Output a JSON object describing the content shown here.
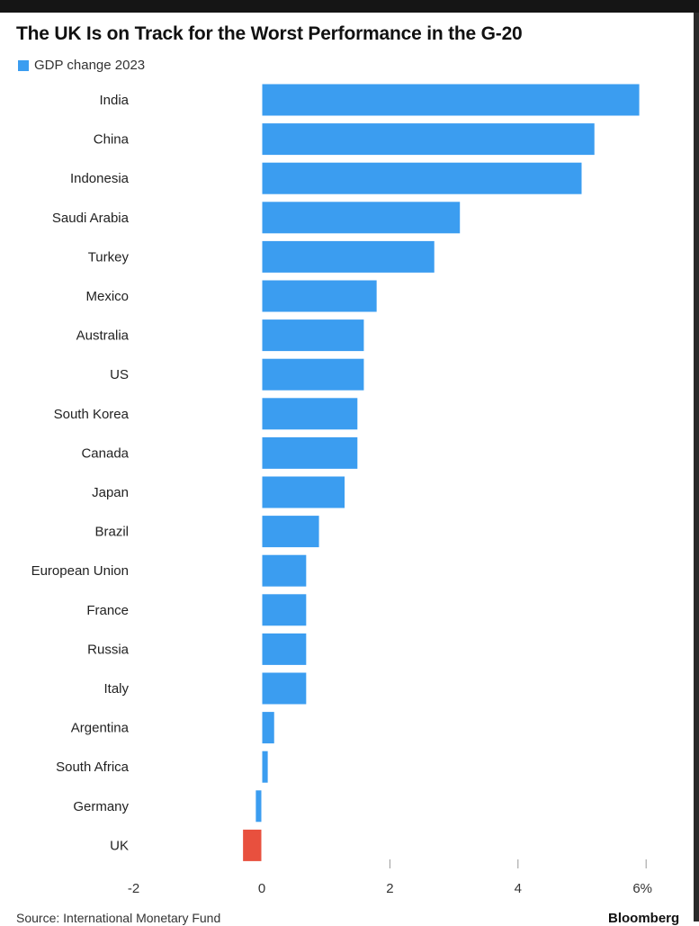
{
  "header": {
    "title": "The UK Is on Track for the Worst Performance in the G-20"
  },
  "footer": {
    "source": "Source: International Monetary Fund",
    "brand": "Bloomberg"
  },
  "colors": {
    "positive": "#3b9df0",
    "negative": "#e8503e"
  },
  "chart_data": {
    "type": "bar",
    "orientation": "horizontal",
    "title": "The UK Is on Track for the Worst Performance in the G-20",
    "legend": {
      "position": "top-left",
      "entries": [
        "GDP change 2023"
      ]
    },
    "categories": [
      "India",
      "China",
      "Indonesia",
      "Saudi Arabia",
      "Turkey",
      "Mexico",
      "Australia",
      "US",
      "South Korea",
      "Canada",
      "Japan",
      "Brazil",
      "European Union",
      "France",
      "Russia",
      "Italy",
      "Argentina",
      "South Africa",
      "Germany",
      "UK"
    ],
    "series": [
      {
        "name": "GDP change 2023",
        "values": [
          5.9,
          5.2,
          5.0,
          3.1,
          2.7,
          1.8,
          1.6,
          1.6,
          1.5,
          1.5,
          1.3,
          0.9,
          0.7,
          0.7,
          0.7,
          0.7,
          0.2,
          0.1,
          -0.1,
          -0.3
        ]
      }
    ],
    "xlim": [
      -2,
      6
    ],
    "xticks": [
      -2,
      0,
      2,
      4,
      6
    ],
    "xtick_labels": [
      "-2",
      "0",
      "2",
      "4",
      "6%"
    ],
    "grid": false
  }
}
